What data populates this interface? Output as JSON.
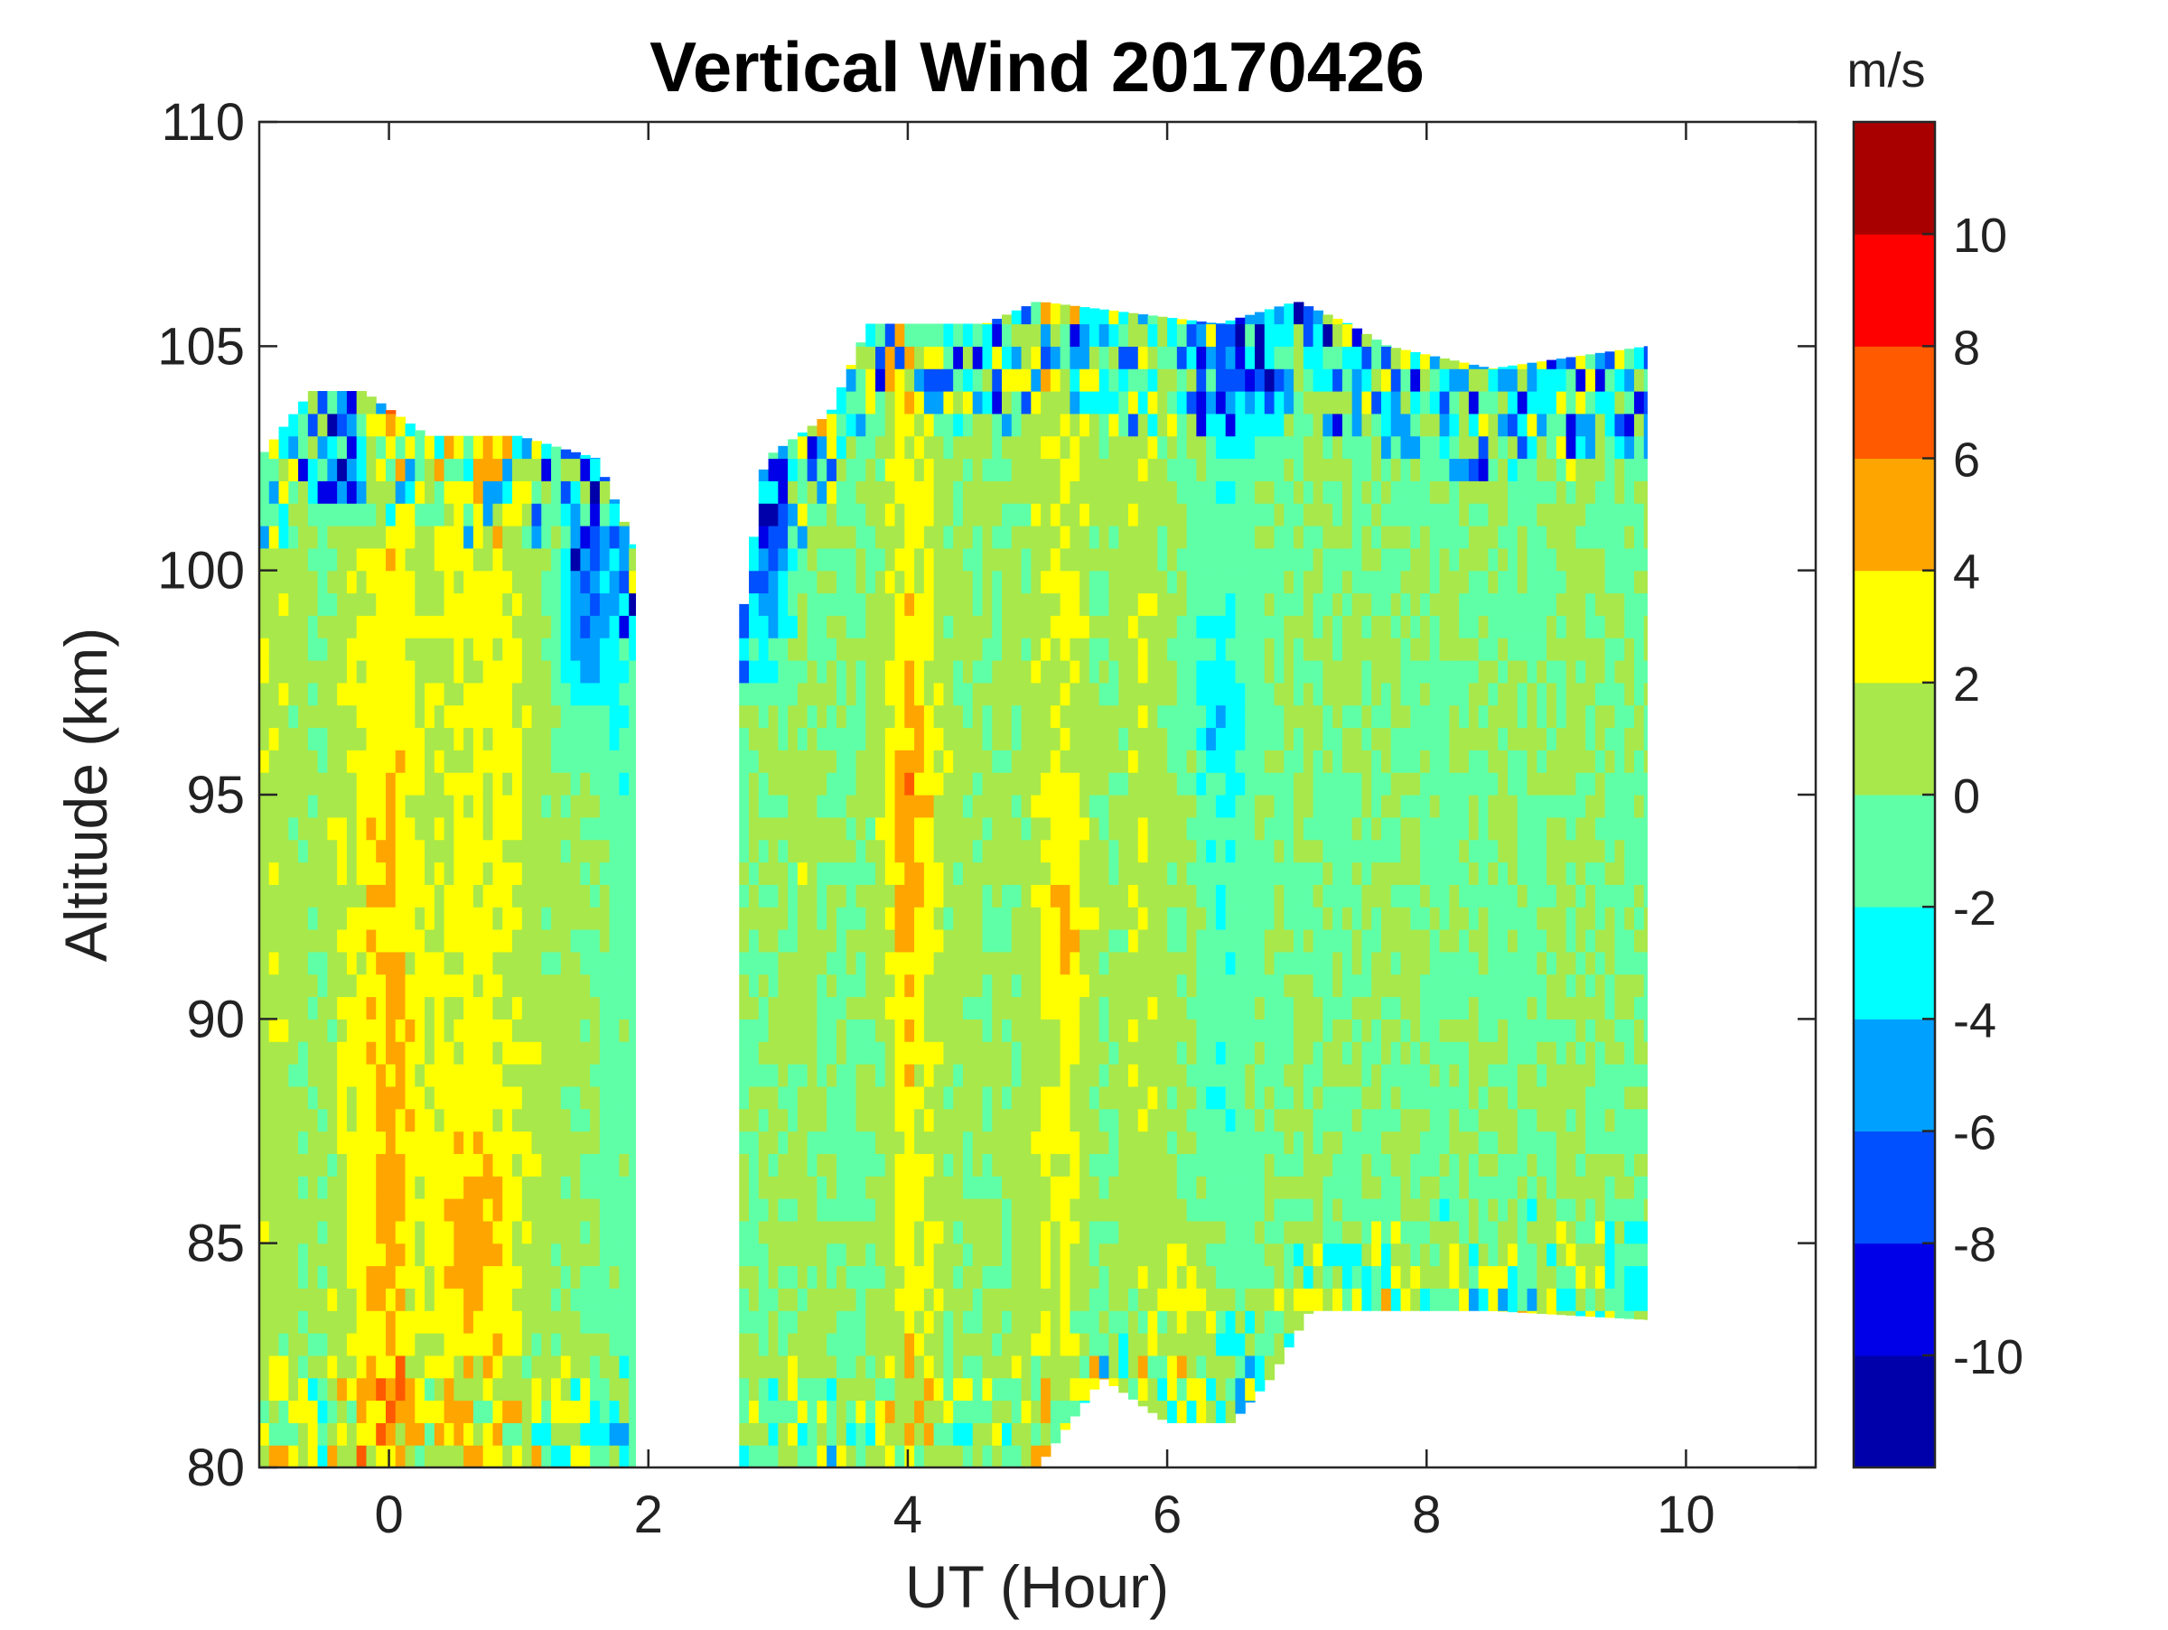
{
  "chart_data": {
    "type": "heatmap",
    "subtype": "filled-contour",
    "title": "Vertical Wind 20170426",
    "xlabel": "UT (Hour)",
    "ylabel": "Altitude (km)",
    "xlim": [
      -1,
      11
    ],
    "ylim": [
      80,
      110
    ],
    "xticks": [
      0,
      2,
      4,
      6,
      8,
      10
    ],
    "yticks": [
      80,
      85,
      90,
      95,
      100,
      105,
      110
    ],
    "colorbar": {
      "label": "m/s",
      "range": [
        -12,
        12
      ],
      "step": 2,
      "tick_values": [
        -10,
        -8,
        -6,
        -4,
        -2,
        0,
        2,
        4,
        6,
        8,
        10
      ],
      "colors": [
        "#0000aa",
        "#0000e8",
        "#0050ff",
        "#00a0ff",
        "#00ffff",
        "#5fffa8",
        "#a8e84a",
        "#ffff00",
        "#ffa500",
        "#ff5a00",
        "#ff0000",
        "#a80000"
      ]
    },
    "segments": [
      {
        "name": "segment-1",
        "ut_range": [
          -1,
          1.9
        ],
        "top_altitude": [
          [
            -1,
            102.5
          ],
          [
            -0.6,
            104
          ],
          [
            -0.2,
            104
          ],
          [
            0.3,
            103
          ],
          [
            1.0,
            103
          ],
          [
            1.6,
            102.5
          ],
          [
            1.9,
            100.5
          ]
        ],
        "bottom_altitude": 80,
        "bands": [
          {
            "ut": -0.85,
            "value": 1.2
          },
          {
            "ut": -0.55,
            "value": 0.4
          },
          {
            "ut": -0.25,
            "value": 2.0
          },
          {
            "ut": 0.0,
            "value": 3.0
          },
          {
            "ut": 0.3,
            "value": 1.4
          },
          {
            "ut": 0.55,
            "value": 2.6
          },
          {
            "ut": 0.85,
            "value": 2.8
          },
          {
            "ut": 1.15,
            "value": 1.0
          },
          {
            "ut": 1.45,
            "value": 0.4
          },
          {
            "ut": 1.75,
            "value": -1.0
          }
        ]
      },
      {
        "name": "segment-2",
        "ut_range": [
          2.7,
          9.7
        ],
        "top_altitude": [
          [
            2.7,
            98.5
          ],
          [
            2.9,
            102.5
          ],
          [
            3.4,
            103.5
          ],
          [
            3.7,
            105.5
          ],
          [
            4.6,
            105.5
          ],
          [
            5.0,
            106
          ],
          [
            6.4,
            105.5
          ],
          [
            7.0,
            106
          ],
          [
            7.4,
            105.5
          ],
          [
            7.7,
            105
          ],
          [
            8.5,
            104.5
          ],
          [
            9.7,
            105
          ]
        ],
        "bottom_altitude": [
          [
            2.7,
            80
          ],
          [
            5.0,
            80
          ],
          [
            5.5,
            82
          ],
          [
            6.0,
            81
          ],
          [
            6.5,
            81
          ],
          [
            6.8,
            82
          ],
          [
            7.1,
            83.5
          ],
          [
            7.7,
            83.5
          ],
          [
            8.5,
            83.5
          ],
          [
            9.7,
            83.3
          ]
        ],
        "bands": [
          {
            "ut": 2.9,
            "value": 0.0
          },
          {
            "ut": 3.2,
            "value": 1.0
          },
          {
            "ut": 3.5,
            "value": -0.5
          },
          {
            "ut": 3.8,
            "value": 0.6
          },
          {
            "ut": 4.0,
            "value": 3.0
          },
          {
            "ut": 4.3,
            "value": 0.8
          },
          {
            "ut": 4.6,
            "value": 0.2
          },
          {
            "ut": 4.9,
            "value": 0.7
          },
          {
            "ut": 5.2,
            "value": 2.6
          },
          {
            "ut": 5.5,
            "value": 0.0
          },
          {
            "ut": 5.8,
            "value": 1.6
          },
          {
            "ut": 6.1,
            "value": 0.2
          },
          {
            "ut": 6.4,
            "value": -1.4
          },
          {
            "ut": 6.8,
            "value": -0.3
          },
          {
            "ut": 7.1,
            "value": 0.3
          },
          {
            "ut": 7.4,
            "value": -0.2
          },
          {
            "ut": 7.8,
            "value": 0.2
          },
          {
            "ut": 8.1,
            "value": -0.6
          },
          {
            "ut": 8.4,
            "value": 0.0
          },
          {
            "ut": 8.8,
            "value": -0.5
          },
          {
            "ut": 9.1,
            "value": 0.5
          },
          {
            "ut": 9.5,
            "value": -0.4
          }
        ]
      }
    ],
    "features": [
      {
        "name": "feature-weak-updraft-band",
        "ut": 0.0,
        "alt_range": [
          80,
          95
        ],
        "value": 3.0
      },
      {
        "name": "feature-updraft-core-0h",
        "ut": 0.0,
        "alt_range": [
          80,
          82
        ],
        "value": 4.0
      },
      {
        "name": "feature-updraft-core-0.6h",
        "ut": 0.6,
        "alt_range": [
          83,
          87
        ],
        "value": 4.5
      },
      {
        "name": "feature-downdraft-top-seg1",
        "ut": 1.5,
        "alt_range": [
          97,
          102
        ],
        "value": -8.0
      },
      {
        "name": "feature-downdraft-top-left",
        "ut": -0.3,
        "alt_range": [
          101,
          104
        ],
        "value": -7.0
      },
      {
        "name": "feature-downdraft-gap-edge",
        "ut": 2.9,
        "alt_range": [
          98,
          103
        ],
        "value": -9.0
      },
      {
        "name": "feature-updraft-4h",
        "ut": 4.0,
        "alt_range": [
          91,
          98
        ],
        "value": 4.0
      },
      {
        "name": "feature-updraft-5.2h",
        "ut": 5.2,
        "alt_range": [
          90,
          94
        ],
        "value": 3.0
      },
      {
        "name": "feature-downdraft-6.4h",
        "ut": 6.4,
        "alt_range": [
          95,
          99
        ],
        "value": -3.0
      },
      {
        "name": "feature-updraft-6.2h-low",
        "ut": 6.2,
        "alt_range": [
          82,
          85
        ],
        "value": 5.0
      },
      {
        "name": "feature-downdraft-top-6-7h",
        "ut": 6.6,
        "alt_range": [
          103,
          105.5
        ],
        "value": -6.0
      }
    ]
  }
}
